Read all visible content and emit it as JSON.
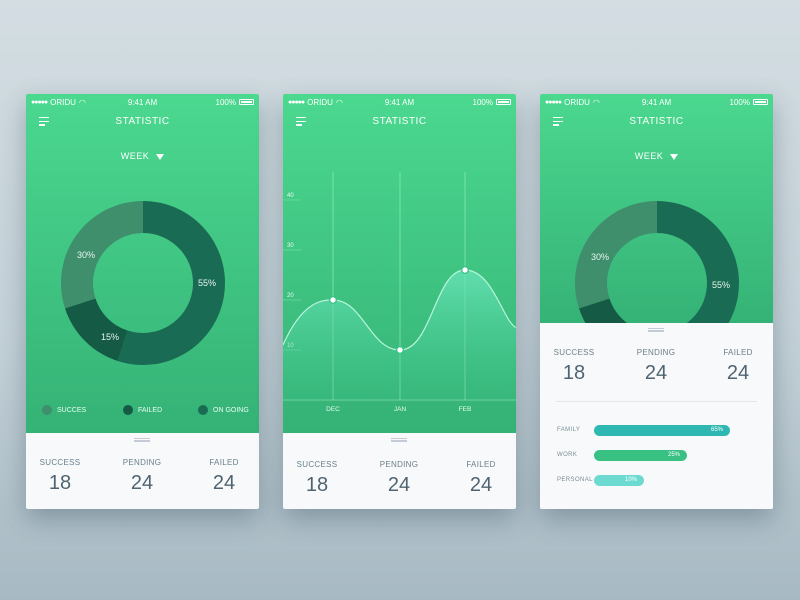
{
  "status": {
    "carrier": "ORIDU",
    "time": "9:41 AM",
    "battery": "100%"
  },
  "title": "STATISTIC",
  "week_label": "WEEK",
  "colors": {
    "green_top": "#4bd88f",
    "green_bottom": "#35b276",
    "dark1": "#1a6b53",
    "dark2": "#155a45",
    "muted": "#3f8e6c",
    "teal": "#2fb8b1",
    "green_bar": "#39c184",
    "light_teal": "#6ddad2"
  },
  "donut": {
    "segments": [
      {
        "label": "55%",
        "value": 55,
        "color": "#1a6b53"
      },
      {
        "label": "15%",
        "value": 15,
        "color": "#155a45"
      },
      {
        "label": "30%",
        "value": 30,
        "color": "#3f8e6c"
      }
    ]
  },
  "legend": [
    {
      "label": "SUCCES",
      "color": "#3f8e6c"
    },
    {
      "label": "FAILED",
      "color": "#155a45"
    },
    {
      "label": "ON GOING",
      "color": "#1a6b53"
    }
  ],
  "stats": [
    {
      "label": "SUCCESS",
      "value": "18"
    },
    {
      "label": "PENDING",
      "value": "24"
    },
    {
      "label": "FAILED",
      "value": "24"
    }
  ],
  "chart_data": {
    "type": "area",
    "x_ticks": [
      "DEC",
      "JAN",
      "FEB"
    ],
    "y_ticks": [
      "10",
      "20",
      "30",
      "40"
    ],
    "ylim": [
      0,
      40
    ],
    "points": [
      {
        "x": "DEC",
        "y": 20
      },
      {
        "x": "JAN",
        "y": 10
      },
      {
        "x": "FEB",
        "y": 26
      }
    ],
    "title": "",
    "xlabel": "",
    "ylabel": ""
  },
  "bars": [
    {
      "label": "FAMILY",
      "value": 65,
      "text": "65%",
      "color": "#2fb8b1"
    },
    {
      "label": "WORK",
      "value": 25,
      "text": "25%",
      "color": "#39c184"
    },
    {
      "label": "PERSONAL",
      "value": 10,
      "text": "10%",
      "color": "#6ddad2"
    }
  ]
}
